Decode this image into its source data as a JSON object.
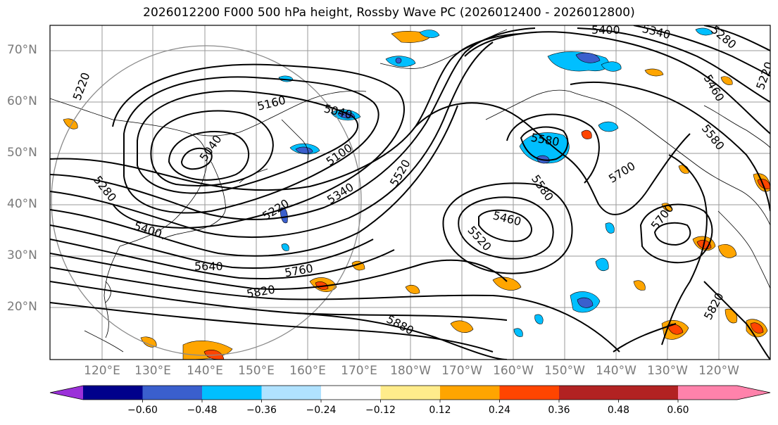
{
  "title": "2026012200 F000 500 hPa height, Rossby Wave PC (2026012400 - 2026012800)",
  "lat_labels": [
    "70°N",
    "60°N",
    "50°N",
    "40°N",
    "30°N",
    "20°N"
  ],
  "lon_labels": [
    "120°E",
    "130°E",
    "140°E",
    "150°E",
    "160°E",
    "170°E",
    "180°W",
    "170°W",
    "160°W",
    "150°W",
    "140°W",
    "130°W",
    "120°W"
  ],
  "contour_labels": [
    "5220",
    "5160",
    "5040",
    "5040",
    "5100",
    "5220",
    "5340",
    "5520",
    "5280",
    "5400",
    "5640",
    "5760",
    "5820",
    "5880",
    "5400",
    "5340",
    "5280",
    "5220",
    "5460",
    "5580",
    "5580",
    "5580",
    "5460",
    "5520",
    "5700",
    "5700",
    "5820"
  ],
  "colorbar": {
    "colors": [
      "#9b30d9",
      "#00008b",
      "#3a5fcd",
      "#00bfff",
      "#b0e2ff",
      "#ffffff",
      "#ffec8b",
      "#ffa500",
      "#ff4500",
      "#b22222",
      "#ff82ab"
    ],
    "tick_labels": [
      "−0.60",
      "−0.48",
      "−0.36",
      "−0.24",
      "−0.12",
      "0.12",
      "0.24",
      "0.36",
      "0.48",
      "0.60"
    ]
  },
  "legend_colors": {
    "height_contour": "#000000",
    "coast": "#000000",
    "grid": "#9a9a9a",
    "range_circle": "#8a8a8a"
  }
}
